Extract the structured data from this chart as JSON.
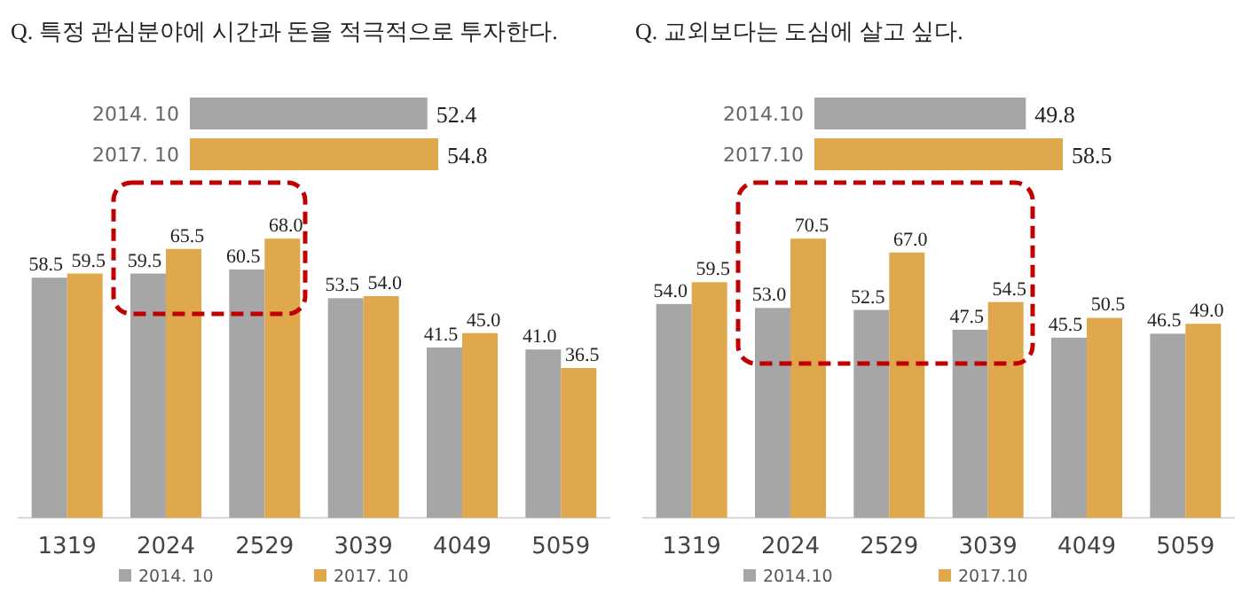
{
  "chart_data": [
    {
      "type": "bar",
      "orientation": "horizontal",
      "title": "Q. 특정 관심분야에 시간과 돈을 적극적으로 투자한다.",
      "categories": [
        "2014. 10",
        "2017. 10"
      ],
      "values": [
        52.4,
        54.8
      ],
      "colors": [
        "#a6a6a6",
        "#e0a84c"
      ],
      "data_labels": true
    },
    {
      "type": "bar",
      "categories": [
        "1319",
        "2024",
        "2529",
        "3039",
        "4049",
        "5059"
      ],
      "series": [
        {
          "name": "2014. 10",
          "color": "#a6a6a6",
          "values": [
            58.5,
            59.5,
            60.5,
            53.5,
            41.5,
            41.0
          ],
          "value_labels": [
            "58.5",
            "59.5",
            "60.5",
            "53.5",
            "41.5",
            "41.0"
          ]
        },
        {
          "name": "2017. 10",
          "color": "#e0a84c",
          "values": [
            59.5,
            65.5,
            68.0,
            54.0,
            45.0,
            36.5
          ],
          "value_labels": [
            "59.5",
            "65.5",
            "68.0",
            "54.0",
            "45.0",
            "36.5"
          ]
        }
      ],
      "legend": "bottom"
    },
    {
      "type": "bar",
      "orientation": "horizontal",
      "title": "Q. 교외보다는 도심에 살고 싶다.",
      "categories": [
        "2014.10",
        "2017.10"
      ],
      "values": [
        49.8,
        58.5
      ],
      "colors": [
        "#a6a6a6",
        "#e0a84c"
      ],
      "data_labels": true
    },
    {
      "type": "bar",
      "categories": [
        "1319",
        "2024",
        "2529",
        "3039",
        "4049",
        "5059"
      ],
      "series": [
        {
          "name": "2014.10",
          "color": "#a6a6a6",
          "values": [
            54.0,
            53.0,
            52.5,
            47.5,
            45.5,
            46.5
          ],
          "value_labels": [
            "54.0",
            "53.0",
            "52.5",
            "47.5",
            "45.5",
            "46.5"
          ]
        },
        {
          "name": "2017.10",
          "color": "#e0a84c",
          "values": [
            59.5,
            70.5,
            67.0,
            54.5,
            50.5,
            49.0
          ],
          "value_labels": [
            "59.5",
            "70.5",
            "67.0",
            "54.5",
            "50.5",
            "49.0"
          ]
        }
      ],
      "legend": "bottom"
    }
  ]
}
